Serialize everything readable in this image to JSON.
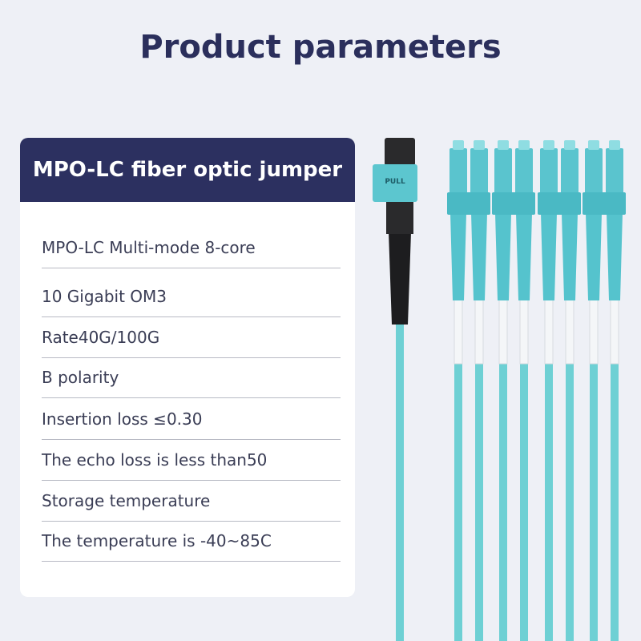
{
  "header": {
    "title": "Product parameters"
  },
  "card": {
    "title": "MPO-LC fiber optic jumper",
    "rows": [
      "MPO-LC Multi-mode 8-core",
      "10 Gigabit OM3",
      "Rate40G/100G",
      "B polarity",
      "Insertion loss ≤0.30",
      "The echo loss is less than50",
      "Storage temperature",
      "The temperature is -40~85C"
    ]
  },
  "connector": {
    "label": "PULL"
  }
}
